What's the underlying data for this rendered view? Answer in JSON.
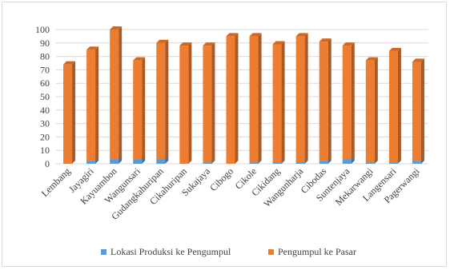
{
  "chart_data": {
    "type": "bar",
    "stacked": true,
    "categories": [
      "Lembang",
      "Jayagiri",
      "Kayuambon",
      "Wangunsari",
      "Gudangkahuripan",
      "Cikahuripan",
      "Sukajaya",
      "Cibogo",
      "Cikole",
      "Cikidang",
      "Wangunharja",
      "Cibodas",
      "Suntenjaya",
      "Mekarwangi",
      "Langensari",
      "Pagerwangi"
    ],
    "series": [
      {
        "name": "Lokasi Produksi ke Pengumpul",
        "color": "#5b9bd5",
        "values": [
          0,
          2,
          3,
          3,
          3,
          0,
          1,
          0,
          1,
          1,
          1,
          2,
          3,
          1,
          1,
          2
        ]
      },
      {
        "name": "Pengumpul ke Pasar",
        "color": "#ed7d31",
        "values": [
          74,
          83,
          97,
          74,
          87,
          88,
          87,
          95,
          94,
          88,
          94,
          89,
          85,
          76,
          83,
          74
        ]
      }
    ],
    "ylim": [
      0,
      100
    ],
    "yticks": [
      0,
      10,
      20,
      30,
      40,
      50,
      60,
      70,
      80,
      90,
      100
    ],
    "grid": true,
    "legend_position": "bottom",
    "title": "",
    "xlabel": "",
    "ylabel": ""
  }
}
